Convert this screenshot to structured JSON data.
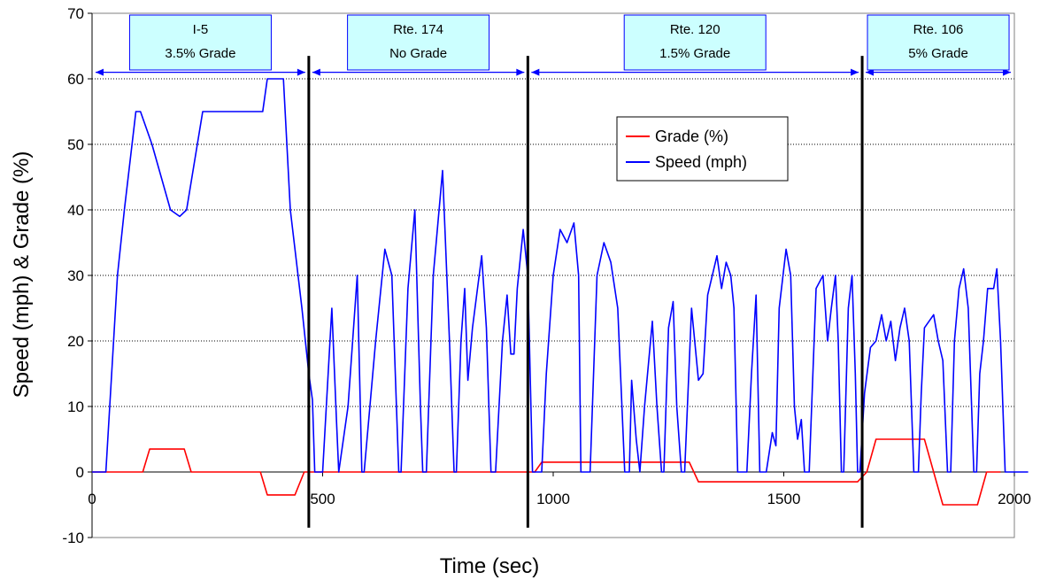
{
  "chart_data": {
    "type": "line",
    "title": "",
    "xlabel": "Time (sec)",
    "ylabel": "Speed (mph) & Grade (%)",
    "xlim": [
      0,
      2000
    ],
    "ylim": [
      -10,
      70
    ],
    "x_ticks": [
      0,
      500,
      1000,
      1500,
      2000
    ],
    "y_ticks": [
      -10,
      0,
      10,
      20,
      30,
      40,
      50,
      60,
      70
    ],
    "grid": "horizontal dotted",
    "legend_position": "center-right",
    "series": [
      {
        "name": "Grade (%)",
        "color": "#ff0000",
        "points": [
          [
            0,
            0
          ],
          [
            110,
            0
          ],
          [
            125,
            3.5
          ],
          [
            200,
            3.5
          ],
          [
            215,
            0
          ],
          [
            365,
            0
          ],
          [
            380,
            -3.5
          ],
          [
            440,
            -3.5
          ],
          [
            460,
            0
          ],
          [
            960,
            0
          ],
          [
            975,
            1.5
          ],
          [
            1295,
            1.5
          ],
          [
            1315,
            -1.5
          ],
          [
            1660,
            -1.5
          ],
          [
            1680,
            0
          ],
          [
            1700,
            5
          ],
          [
            1805,
            5
          ],
          [
            1825,
            0
          ],
          [
            1845,
            -5
          ],
          [
            1920,
            -5
          ],
          [
            1940,
            0
          ],
          [
            1970,
            0
          ]
        ]
      },
      {
        "name": "Speed (mph)",
        "color": "#0000ff",
        "points": [
          [
            0,
            0
          ],
          [
            30,
            0
          ],
          [
            55,
            30
          ],
          [
            70,
            40
          ],
          [
            95,
            55
          ],
          [
            105,
            55
          ],
          [
            130,
            50
          ],
          [
            170,
            40
          ],
          [
            190,
            39
          ],
          [
            205,
            40
          ],
          [
            240,
            55
          ],
          [
            370,
            55
          ],
          [
            380,
            60
          ],
          [
            415,
            60
          ],
          [
            430,
            40
          ],
          [
            455,
            25
          ],
          [
            470,
            15
          ],
          [
            478,
            11
          ],
          [
            483,
            0
          ],
          [
            500,
            0
          ],
          [
            520,
            25
          ],
          [
            530,
            8
          ],
          [
            535,
            0
          ],
          [
            555,
            10
          ],
          [
            575,
            30
          ],
          [
            585,
            0
          ],
          [
            590,
            0
          ],
          [
            615,
            20
          ],
          [
            635,
            34
          ],
          [
            650,
            30
          ],
          [
            665,
            0
          ],
          [
            670,
            0
          ],
          [
            685,
            28
          ],
          [
            700,
            40
          ],
          [
            712,
            10
          ],
          [
            717,
            0
          ],
          [
            725,
            0
          ],
          [
            740,
            30
          ],
          [
            760,
            46
          ],
          [
            775,
            20
          ],
          [
            785,
            0
          ],
          [
            790,
            0
          ],
          [
            800,
            20
          ],
          [
            808,
            28
          ],
          [
            815,
            14
          ],
          [
            825,
            22
          ],
          [
            845,
            33
          ],
          [
            855,
            22
          ],
          [
            865,
            0
          ],
          [
            875,
            0
          ],
          [
            890,
            20
          ],
          [
            900,
            27
          ],
          [
            908,
            18
          ],
          [
            915,
            18
          ],
          [
            922,
            28
          ],
          [
            935,
            37
          ],
          [
            945,
            30
          ],
          [
            955,
            0
          ],
          [
            975,
            0
          ],
          [
            985,
            15
          ],
          [
            1000,
            30
          ],
          [
            1015,
            37
          ],
          [
            1030,
            35
          ],
          [
            1045,
            38
          ],
          [
            1055,
            30
          ],
          [
            1060,
            0
          ],
          [
            1080,
            0
          ],
          [
            1095,
            30
          ],
          [
            1110,
            35
          ],
          [
            1125,
            32
          ],
          [
            1140,
            25
          ],
          [
            1155,
            0
          ],
          [
            1165,
            0
          ],
          [
            1170,
            14
          ],
          [
            1180,
            5
          ],
          [
            1188,
            0
          ],
          [
            1198,
            10
          ],
          [
            1215,
            23
          ],
          [
            1225,
            10
          ],
          [
            1235,
            0
          ],
          [
            1240,
            0
          ],
          [
            1250,
            22
          ],
          [
            1260,
            26
          ],
          [
            1268,
            10
          ],
          [
            1278,
            0
          ],
          [
            1285,
            0
          ],
          [
            1300,
            25
          ],
          [
            1315,
            14
          ],
          [
            1325,
            15
          ],
          [
            1335,
            27
          ],
          [
            1355,
            33
          ],
          [
            1365,
            28
          ],
          [
            1375,
            32
          ],
          [
            1385,
            30
          ],
          [
            1392,
            25
          ],
          [
            1400,
            0
          ],
          [
            1420,
            0
          ],
          [
            1430,
            15
          ],
          [
            1440,
            27
          ],
          [
            1448,
            0
          ],
          [
            1462,
            0
          ],
          [
            1475,
            6
          ],
          [
            1483,
            4
          ],
          [
            1490,
            25
          ],
          [
            1505,
            34
          ],
          [
            1515,
            30
          ],
          [
            1523,
            10
          ],
          [
            1530,
            5
          ],
          [
            1538,
            8
          ],
          [
            1545,
            0
          ],
          [
            1555,
            0
          ],
          [
            1570,
            28
          ],
          [
            1585,
            30
          ],
          [
            1595,
            20
          ],
          [
            1603,
            25
          ],
          [
            1612,
            30
          ],
          [
            1618,
            20
          ],
          [
            1625,
            0
          ],
          [
            1630,
            0
          ],
          [
            1640,
            25
          ],
          [
            1648,
            30
          ],
          [
            1655,
            15
          ],
          [
            1660,
            0
          ],
          [
            1665,
            0
          ],
          [
            1675,
            12
          ],
          [
            1688,
            19
          ],
          [
            1700,
            20
          ],
          [
            1712,
            24
          ],
          [
            1722,
            20
          ],
          [
            1732,
            23
          ],
          [
            1742,
            17
          ],
          [
            1752,
            22
          ],
          [
            1762,
            25
          ],
          [
            1772,
            20
          ],
          [
            1782,
            0
          ],
          [
            1792,
            0
          ],
          [
            1798,
            12
          ],
          [
            1805,
            22
          ],
          [
            1815,
            23
          ],
          [
            1825,
            24
          ],
          [
            1835,
            20
          ],
          [
            1845,
            17
          ],
          [
            1855,
            0
          ],
          [
            1862,
            0
          ],
          [
            1870,
            20
          ],
          [
            1880,
            28
          ],
          [
            1890,
            31
          ],
          [
            1900,
            25
          ],
          [
            1912,
            0
          ],
          [
            1918,
            0
          ],
          [
            1925,
            15
          ],
          [
            1933,
            20
          ],
          [
            1942,
            28
          ],
          [
            1955,
            28
          ],
          [
            1962,
            31
          ],
          [
            1970,
            20
          ],
          [
            1980,
            0
          ],
          [
            2030,
            0
          ]
        ]
      }
    ],
    "segment_dividers": [
      470,
      945,
      1670
    ],
    "segments": [
      {
        "name": "I-5",
        "grade": "3.5% Grade",
        "x0": 0,
        "x1": 470
      },
      {
        "name": "Rte. 174",
        "grade": "No Grade",
        "x0": 470,
        "x1": 945
      },
      {
        "name": "Rte. 120",
        "grade": "1.5% Grade",
        "x0": 945,
        "x1": 1670
      },
      {
        "name": "Rte. 106",
        "grade": "5% Grade",
        "x0": 1670,
        "x1": 2000
      }
    ],
    "segment_box_color": "#ccffff"
  }
}
